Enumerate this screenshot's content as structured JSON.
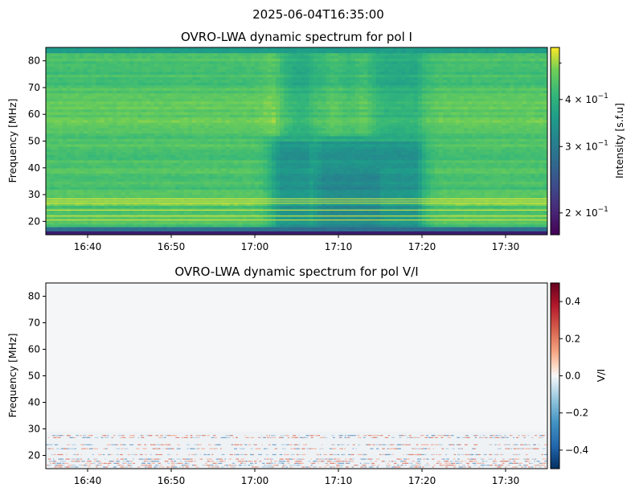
{
  "figure": {
    "suptitle": "2025-06-04T16:35:00"
  },
  "chart_data": [
    {
      "type": "heatmap",
      "title": "OVRO-LWA dynamic spectrum for pol I",
      "ylabel": "Frequency [MHz]",
      "xlabel": "",
      "x_tick_labels": [
        "16:40",
        "16:50",
        "17:00",
        "17:10",
        "17:20",
        "17:30"
      ],
      "x_tick_minutes": [
        5,
        15,
        25,
        35,
        45,
        55
      ],
      "xlim_minutes_after_1635": [
        0,
        60
      ],
      "y_ticks": [
        20,
        30,
        40,
        50,
        60,
        70,
        80
      ],
      "ylim": [
        15,
        85
      ],
      "colormap": "viridis",
      "colorbar_label": "Intensity [s.f.u]",
      "colorbar_scale": "log",
      "colorbar_range": [
        0.175,
        0.55
      ],
      "colorbar_ticks": [
        {
          "value": 0.2,
          "mantissa": "2",
          "exp": "−1"
        },
        {
          "value": 0.3,
          "mantissa": "3",
          "exp": "−1"
        },
        {
          "value": 0.4,
          "mantissa": "4",
          "exp": "−1"
        }
      ]
    },
    {
      "type": "heatmap",
      "title": "OVRO-LWA dynamic spectrum for pol V/I",
      "ylabel": "Frequency [MHz]",
      "xlabel": "",
      "x_tick_labels": [
        "16:40",
        "16:50",
        "17:00",
        "17:10",
        "17:20",
        "17:30"
      ],
      "x_tick_minutes": [
        5,
        15,
        25,
        35,
        45,
        55
      ],
      "xlim_minutes_after_1635": [
        0,
        60
      ],
      "y_ticks": [
        20,
        30,
        40,
        50,
        60,
        70,
        80
      ],
      "ylim": [
        15,
        85
      ],
      "colormap": "RdBu_r",
      "colorbar_label": "V/I",
      "colorbar_scale": "linear",
      "colorbar_range": [
        -0.5,
        0.5
      ],
      "colorbar_ticks": [
        {
          "value": 0.4,
          "label": "0.4"
        },
        {
          "value": 0.2,
          "label": "0.2"
        },
        {
          "value": 0.0,
          "label": "0.0"
        },
        {
          "value": -0.2,
          "label": "−0.2"
        },
        {
          "value": -0.4,
          "label": "−0.4"
        }
      ]
    }
  ]
}
